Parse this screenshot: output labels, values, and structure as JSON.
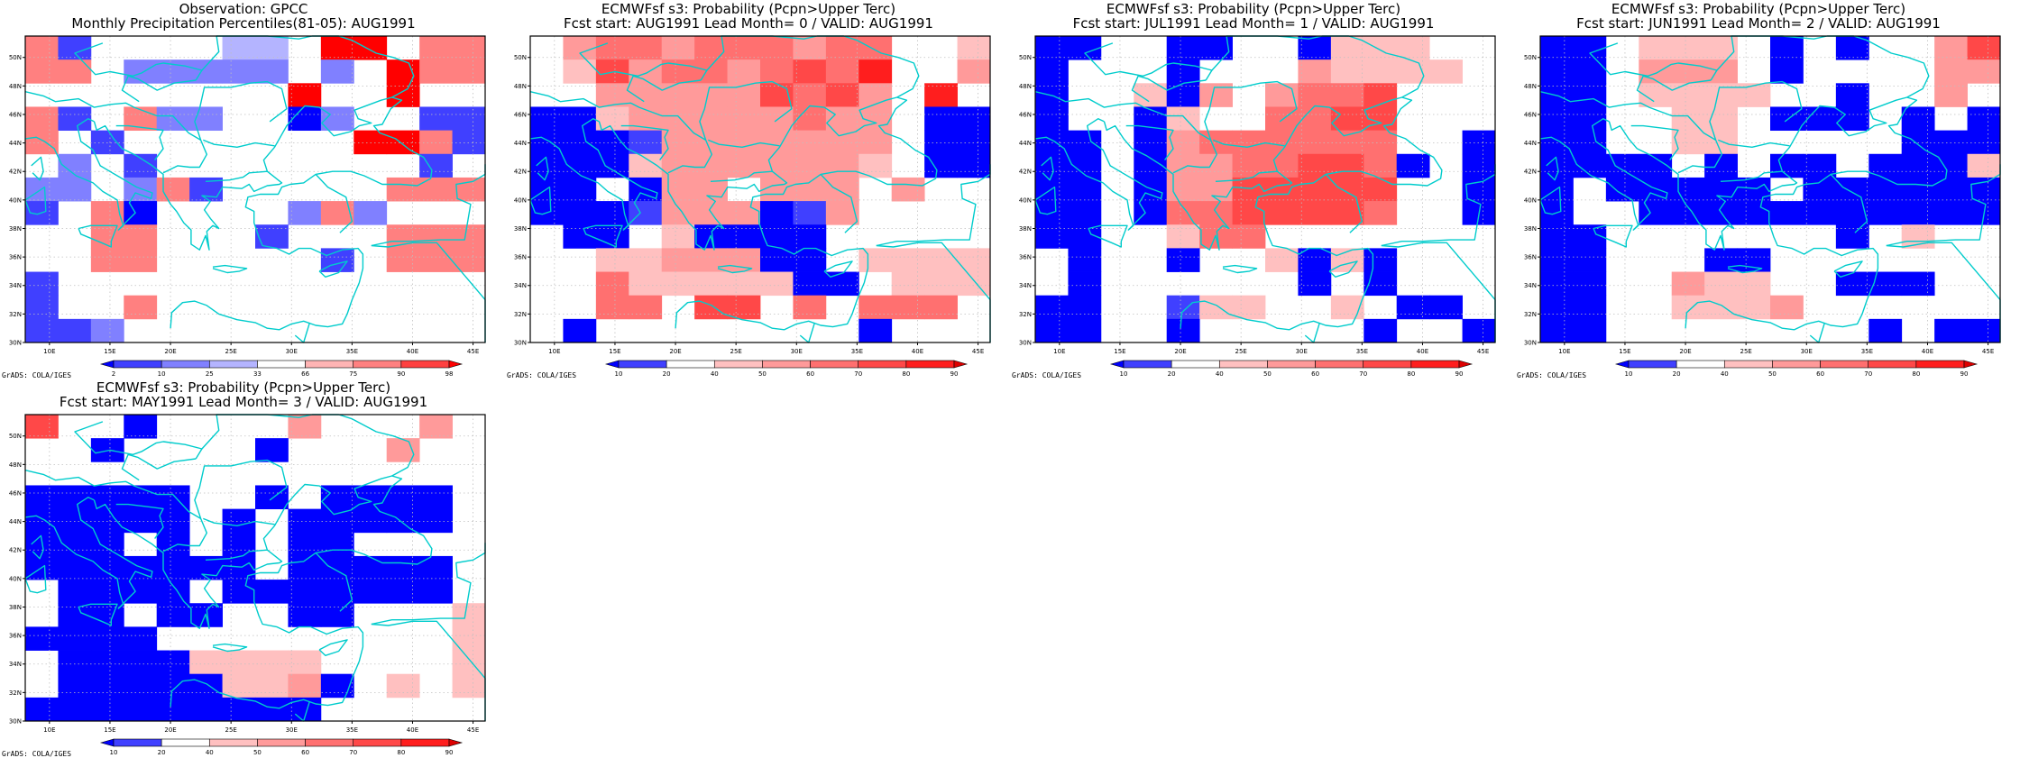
{
  "credit": "GrADS: COLA/IGES",
  "x_ticks": [
    "10E",
    "15E",
    "20E",
    "25E",
    "30E",
    "35E",
    "40E",
    "45E"
  ],
  "y_ticks": [
    "30N",
    "32N",
    "34N",
    "36N",
    "38N",
    "40N",
    "42N",
    "44N",
    "46N",
    "48N",
    "50N"
  ],
  "obs_legend": {
    "labels": [
      "2",
      "10",
      "25",
      "33",
      "66",
      "75",
      "90",
      "98"
    ],
    "colors": [
      "#0000ff",
      "#4040ff",
      "#8080ff",
      "#b4b4ff",
      "#ffffff",
      "#ffb4b4",
      "#ff8080",
      "#ff4040",
      "#ff0000"
    ]
  },
  "prob_legend": {
    "labels": [
      "10",
      "20",
      "40",
      "50",
      "60",
      "70",
      "80",
      "90"
    ],
    "colors": [
      "#0000ff",
      "#4040ff",
      "#ffffff",
      "#ffc0c0",
      "#ff9a9a",
      "#ff7070",
      "#ff4848",
      "#ff1e1e",
      "#dd0000"
    ]
  },
  "colors": {
    "coast": "#00cccc",
    "grid": "#bfbfbf"
  },
  "panels": [
    {
      "title_line1": "Observation: GPCC",
      "title_line2": "Monthly Precipitation Percentiles(81-05): AUG1991",
      "legend": "obs",
      "grid": [
        "62000044088066",
        "66011111010866",
        "00000000800800",
        "62061100310022",
        "60200000008862",
        "01020000000020",
        "11016200000666",
        "20630000161000",
        "00660002000666",
        "00660000020666",
        "20000000000000",
        "20060000000000",
        "22100000000000"
      ]
    },
    {
      "title_line1": "ECMWFsf s3: Probability (Pcpn>Upper Terc)",
      "title_line2": "Fcst start: AUG1991  Lead Month= 0 / VALID: AUG1991",
      "legend": "prob",
      "grid": [
        "04554555455003",
        "03645545657004",
        "00444446564070",
        "11344444544011",
        "11124444444011",
        "11134444443011",
        "11014404440400",
        "11124441240000",
        "01103111100000",
        "00334441103333",
        "00533333110333",
        "00550660505550",
        "01000000001000"
      ]
    },
    {
      "title_line1": "ECMWFsf s3: Probability (Pcpn>Upper Terc)",
      "title_line2": "Fcst start: JUL1991  Lead Month= 1 / VALID: AUG1991",
      "legend": "prob",
      "grid": [
        "11001100133300",
        "10001000433330",
        "10031404556000",
        "10013005566000",
        "11014555555001",
        "11014455665101",
        "11014466666001",
        "11015566665001",
        "11003550000000",
        "01001003131000",
        "01000000101000",
        "11002330030110",
        "11001000001001"
      ]
    },
    {
      "title_line1": "ECMWFsf s3: Probability (Pcpn>Upper Terc)",
      "title_line2": "Fcst start: JUN1991  Lead Month= 2 / VALID: AUG1991",
      "legend": "prob",
      "grid": [
        "11033301010046",
        "11044401000044",
        "11033330010040",
        "11003301110101",
        "11003300000111",
        "11110101101113",
        "10111110111111",
        "10011111111111",
        "11000000010300",
        "11000110000000",
        "11004330011100",
        "11003334000000",
        "11000000001011"
      ]
    },
    {
      "title_line1": "ECMWFsf s3: Probability (Pcpn>Upper Terc)",
      "title_line2": "Fcst start: MAY1991  Lead Month= 3 / VALID: AUG1991",
      "legend": "prob",
      "grid": [
        "60010000400040",
        "00100001000400",
        "00000000000000",
        "11111001011110",
        "11111010111110",
        "11101010110000",
        "11111110111110",
        "01111011111110",
        "01101100110003",
        "11110000000003",
        "01111333300003",
        "01111133410303",
        "11111111100000"
      ]
    }
  ]
}
